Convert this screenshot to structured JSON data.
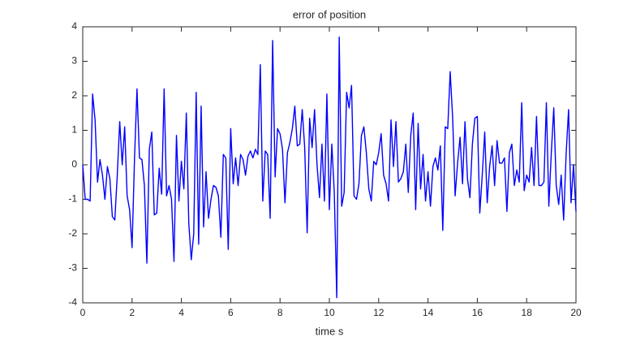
{
  "chart_data": {
    "type": "line",
    "title": "error of position",
    "xlabel": "time  s",
    "xlim": [
      0,
      20
    ],
    "xticks": [
      0,
      2,
      4,
      6,
      8,
      10,
      12,
      14,
      16,
      18,
      20
    ],
    "ylim": [
      -4,
      4
    ],
    "yticks": [
      -4,
      -3,
      -2,
      -1,
      0,
      1,
      2,
      3,
      4
    ],
    "grid": false,
    "x": [
      0,
      0.1,
      0.2,
      0.3,
      0.4,
      0.5,
      0.6,
      0.7,
      0.8,
      0.9,
      1,
      1.1,
      1.2,
      1.3,
      1.4,
      1.5,
      1.6,
      1.7,
      1.8,
      1.9,
      2,
      2.1,
      2.2,
      2.3,
      2.4,
      2.5,
      2.6,
      2.7,
      2.8,
      2.9,
      3,
      3.1,
      3.2,
      3.3,
      3.4,
      3.5,
      3.6,
      3.7,
      3.8,
      3.9,
      4,
      4.1,
      4.2,
      4.3,
      4.4,
      4.5,
      4.6,
      4.7,
      4.8,
      4.9,
      5,
      5.1,
      5.2,
      5.3,
      5.4,
      5.5,
      5.6,
      5.7,
      5.8,
      5.9,
      6,
      6.1,
      6.2,
      6.3,
      6.4,
      6.5,
      6.6,
      6.7,
      6.8,
      6.9,
      7,
      7.1,
      7.2,
      7.3,
      7.4,
      7.5,
      7.6,
      7.7,
      7.8,
      7.9,
      8,
      8.1,
      8.2,
      8.3,
      8.4,
      8.5,
      8.6,
      8.7,
      8.8,
      8.9,
      9,
      9.1,
      9.2,
      9.3,
      9.4,
      9.5,
      9.6,
      9.7,
      9.8,
      9.9,
      10,
      10.1,
      10.2,
      10.3,
      10.4,
      10.5,
      10.6,
      10.7,
      10.8,
      10.9,
      11,
      11.1,
      11.2,
      11.3,
      11.4,
      11.5,
      11.6,
      11.7,
      11.8,
      11.9,
      12,
      12.1,
      12.2,
      12.3,
      12.4,
      12.5,
      12.6,
      12.7,
      12.8,
      12.9,
      13,
      13.1,
      13.2,
      13.3,
      13.4,
      13.5,
      13.6,
      13.7,
      13.8,
      13.9,
      14,
      14.1,
      14.2,
      14.3,
      14.4,
      14.5,
      14.6,
      14.7,
      14.8,
      14.9,
      15,
      15.1,
      15.2,
      15.3,
      15.4,
      15.5,
      15.6,
      15.7,
      15.8,
      15.9,
      16,
      16.1,
      16.2,
      16.3,
      16.4,
      16.5,
      16.6,
      16.7,
      16.8,
      16.9,
      17,
      17.1,
      17.2,
      17.3,
      17.4,
      17.5,
      17.6,
      17.7,
      17.8,
      17.9,
      18,
      18.1,
      18.2,
      18.3,
      18.4,
      18.5,
      18.6,
      18.7,
      18.8,
      18.9,
      19,
      19.1,
      19.2,
      19.3,
      19.4,
      19.5,
      19.6,
      19.7,
      19.8,
      19.9,
      20
    ],
    "series": [
      {
        "color": "#0000ff",
        "values": [
          0,
          -1.0,
          -1.0,
          -1.05,
          2.05,
          1.3,
          -0.5,
          0.15,
          -0.3,
          -1.0,
          -0.05,
          -0.4,
          -1.5,
          -1.6,
          -0.3,
          1.25,
          0.0,
          1.1,
          -0.9,
          -1.3,
          -2.4,
          0.2,
          2.2,
          0.2,
          0.15,
          -0.6,
          -2.85,
          0.45,
          0.95,
          -1.45,
          -1.4,
          -0.1,
          -0.85,
          2.2,
          -0.9,
          -0.6,
          -1.0,
          -2.8,
          0.85,
          -1.05,
          0.1,
          -0.7,
          1.5,
          -1.7,
          -2.75,
          -2.0,
          2.1,
          -2.3,
          1.7,
          -1.8,
          -0.2,
          -1.55,
          -1.0,
          -0.6,
          -0.65,
          -0.9,
          -2.1,
          0.3,
          0.2,
          -2.45,
          1.05,
          -0.55,
          0.2,
          -0.6,
          0.3,
          0.15,
          -0.3,
          0.25,
          0.4,
          0.2,
          0.45,
          0.3,
          2.9,
          -1.05,
          0.4,
          0.3,
          -1.55,
          3.6,
          -0.35,
          1.05,
          0.9,
          0.45,
          -1.1,
          0.35,
          0.65,
          1.05,
          1.7,
          0.55,
          0.6,
          1.6,
          0.5,
          -1.97,
          1.35,
          0.5,
          1.6,
          0.0,
          -0.95,
          0.6,
          -1.05,
          2.05,
          -1.3,
          0.6,
          -0.8,
          -3.85,
          3.7,
          -1.2,
          -0.8,
          2.1,
          1.65,
          2.3,
          -0.9,
          -1.0,
          -0.55,
          0.85,
          1.1,
          0.35,
          -0.7,
          -1.05,
          0.1,
          0.0,
          0.35,
          0.9,
          -0.3,
          -0.55,
          -1.05,
          1.3,
          -0.05,
          1.25,
          -0.5,
          -0.4,
          -0.2,
          0.6,
          -0.8,
          0.85,
          1.5,
          -1.3,
          1.2,
          -0.7,
          0.3,
          -1.05,
          -0.2,
          -1.2,
          -0.05,
          0.2,
          -0.15,
          0.55,
          -1.9,
          1.1,
          1.05,
          2.7,
          1.35,
          -0.9,
          0.05,
          0.8,
          -0.55,
          1.25,
          -0.4,
          -0.95,
          0.6,
          1.35,
          1.4,
          -1.4,
          -0.3,
          0.95,
          -1.1,
          -0.05,
          0.55,
          -0.6,
          0.7,
          0.05,
          0.05,
          0.2,
          -1.35,
          0.35,
          0.6,
          -0.6,
          -0.15,
          -0.5,
          1.8,
          -0.75,
          -0.3,
          -0.5,
          0.5,
          -0.6,
          1.4,
          -0.6,
          -0.6,
          -0.5,
          1.8,
          -1.2,
          0.35,
          1.65,
          -0.6,
          -1.15,
          -0.3,
          -1.6,
          0.3,
          1.6,
          -1.1,
          0.0,
          -1.35
        ]
      }
    ]
  }
}
